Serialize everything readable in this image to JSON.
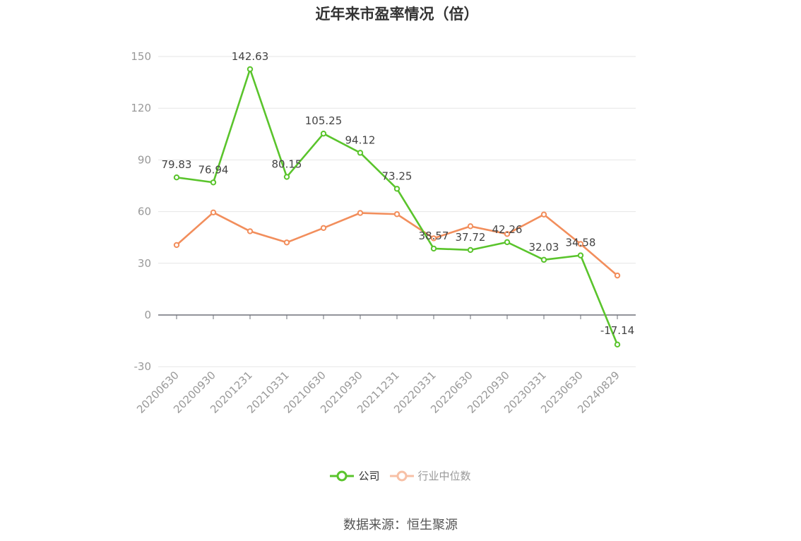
{
  "chart_data": {
    "type": "line",
    "title": "近年来市盈率情况（倍）",
    "categories": [
      "20200630",
      "20200930",
      "20201231",
      "20210331",
      "20210630",
      "20210930",
      "20211231",
      "20220331",
      "20220630",
      "20220930",
      "20230331",
      "20230630",
      "20240829"
    ],
    "series": [
      {
        "name": "公司",
        "color": "#5ac42c",
        "values": [
          79.83,
          76.94,
          142.63,
          80.15,
          105.25,
          94.12,
          73.25,
          38.57,
          37.72,
          42.26,
          32.03,
          34.58,
          -17.14
        ],
        "labels": [
          "79.83",
          "76.94",
          "142.63",
          "80.15",
          "105.25",
          "94.12",
          "73.25",
          "38.57",
          "37.72",
          "42.26",
          "32.03",
          "34.58",
          "-17.14"
        ]
      },
      {
        "name": "行业中位数",
        "color": "#f28e5c",
        "values": [
          40.6,
          59.5,
          48.6,
          42.1,
          50.5,
          59.2,
          58.5,
          44.5,
          51.5,
          47.0,
          58.3,
          41.2,
          22.9
        ]
      }
    ],
    "ylim": [
      -30,
      150
    ],
    "yticks": [
      "-30",
      "0",
      "30",
      "60",
      "90",
      "120",
      "150"
    ],
    "grid": true,
    "legend_position": "bottom"
  },
  "source": "数据来源：恒生聚源"
}
